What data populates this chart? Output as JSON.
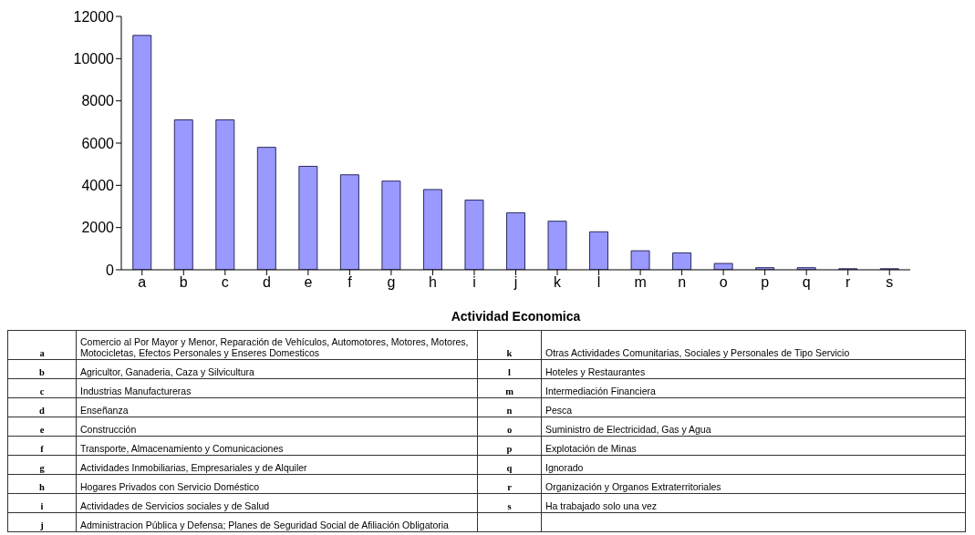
{
  "chart_data": {
    "type": "bar",
    "xlabel": "Actividad Economica",
    "categories": [
      "a",
      "b",
      "c",
      "d",
      "e",
      "f",
      "g",
      "h",
      "i",
      "j",
      "k",
      "l",
      "m",
      "n",
      "o",
      "p",
      "q",
      "r",
      "s"
    ],
    "values": [
      11100,
      7100,
      7100,
      5800,
      4900,
      4500,
      4200,
      3800,
      3300,
      2700,
      2300,
      1800,
      900,
      800,
      300,
      100,
      100,
      50,
      50
    ],
    "color": "#9999ff",
    "ylim": [
      0,
      12000
    ],
    "yticks": [
      0,
      2000,
      4000,
      6000,
      8000,
      10000,
      12000
    ],
    "grid": false,
    "legend": false,
    "annotations": [
      "Comercio al Por Mayor y Menor, Reparación de Vehículos, Automotores, Motores, Motores, Motocicletas, Efectos Personales y Enseres Domesticos",
      "Agricultor, Ganaderia, Caza y Silvicultura",
      "Industrias Manufactureras",
      "Enseñanza",
      "Construcción",
      "Transporte, Almacenamiento y Comunicaciones",
      "Actividades Inmobiliarias, Empresariales y de Alquiler",
      "Hogares Privados con Servicio Doméstico",
      "Actividades de Servicios sociales y de Salud",
      "Administracion Pública y Defensa; Planes de Seguridad Social de Afiliación Obligatoria",
      "Otras Actividades Comunitarias, Sociales y Personales de Tipo Servicio",
      "Hoteles y Restaurantes",
      "Intermediación Financiera",
      "Pesca",
      "Suministro de Electricidad, Gas y Agua",
      "Explotación de Minas",
      "Ignorado",
      "Organización y Organos Extraterritoriales",
      "Ha trabajado solo una vez"
    ]
  }
}
